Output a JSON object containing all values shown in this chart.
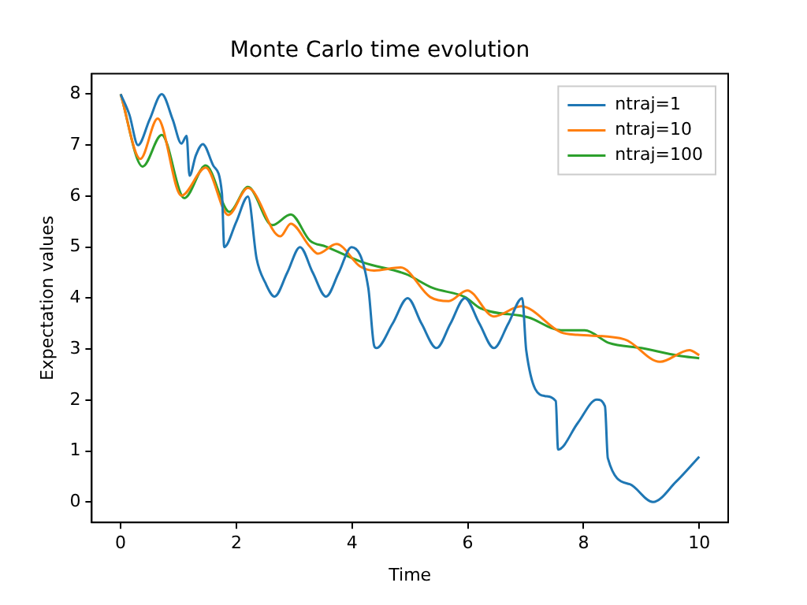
{
  "chart_data": {
    "type": "line",
    "title": "Monte Carlo time evolution",
    "xlabel": "Time",
    "ylabel": "Expectation values",
    "xlim": [
      -0.5,
      10.5
    ],
    "ylim": [
      -0.4,
      8.4
    ],
    "xticks": [
      0,
      2,
      4,
      6,
      8,
      10
    ],
    "yticks": [
      0,
      1,
      2,
      3,
      4,
      5,
      6,
      7,
      8
    ],
    "grid": false,
    "legend": "top right",
    "marker": "none",
    "line_style": "solid",
    "series": [
      {
        "name": "ntraj=1",
        "color": "#1f77b4",
        "x": [
          0,
          0.15,
          0.3,
          0.5,
          0.71,
          0.9,
          1.05,
          1.14,
          1.19,
          1.3,
          1.42,
          1.6,
          1.75,
          1.79,
          2.0,
          2.2,
          2.35,
          2.5,
          2.66,
          2.88,
          3.1,
          3.32,
          3.55,
          3.77,
          3.99,
          4.28,
          4.38,
          4.42,
          4.7,
          4.96,
          5.2,
          5.46,
          5.7,
          5.95,
          6.2,
          6.45,
          6.7,
          6.94,
          7.01,
          7.33,
          7.52,
          7.56,
          7.9,
          8.23,
          8.37,
          8.42,
          8.8,
          9.2,
          9.6,
          10
        ],
        "values": [
          8.0,
          7.6,
          7.0,
          7.5,
          8.0,
          7.5,
          7.03,
          7.18,
          6.4,
          6.8,
          7.02,
          6.6,
          6.06,
          5.0,
          5.5,
          5.99,
          4.77,
          4.3,
          4.03,
          4.5,
          5.0,
          4.5,
          4.03,
          4.5,
          5.0,
          4.2,
          3.07,
          3.02,
          3.5,
          4.0,
          3.5,
          3.02,
          3.5,
          4.0,
          3.5,
          3.02,
          3.5,
          4.0,
          2.97,
          2.08,
          1.98,
          1.03,
          1.55,
          2.01,
          1.88,
          0.86,
          0.35,
          0.0,
          0.4,
          0.89
        ]
      },
      {
        "name": "ntraj=10",
        "color": "#ff7f0e",
        "x": [
          0,
          0.34,
          0.64,
          1.05,
          1.47,
          1.86,
          2.2,
          2.76,
          2.94,
          3.27,
          3.41,
          3.73,
          4.14,
          4.38,
          4.84,
          5.35,
          5.67,
          5.99,
          6.45,
          6.92,
          7.61,
          7.89,
          8.71,
          9.32,
          9.83,
          10
        ],
        "values": [
          8.0,
          6.73,
          7.52,
          6.01,
          6.56,
          5.63,
          6.16,
          5.21,
          5.46,
          5.01,
          4.87,
          5.06,
          4.62,
          4.54,
          4.6,
          4.02,
          3.94,
          4.15,
          3.64,
          3.84,
          3.33,
          3.28,
          3.19,
          2.75,
          2.98,
          2.88
        ]
      },
      {
        "name": "ntraj=100",
        "color": "#2ca02c",
        "x": [
          0,
          0.38,
          0.71,
          1.1,
          1.47,
          1.88,
          2.2,
          2.62,
          2.94,
          3.27,
          3.55,
          4.19,
          4.93,
          5.39,
          5.95,
          6.22,
          7.05,
          7.61,
          8.02,
          8.44,
          9.0,
          9.64,
          10
        ],
        "values": [
          8.0,
          6.58,
          7.2,
          5.96,
          6.6,
          5.69,
          6.18,
          5.43,
          5.64,
          5.13,
          5.01,
          4.7,
          4.47,
          4.2,
          4.02,
          3.8,
          3.62,
          3.37,
          3.37,
          3.12,
          3.02,
          2.87,
          2.82
        ]
      }
    ]
  }
}
